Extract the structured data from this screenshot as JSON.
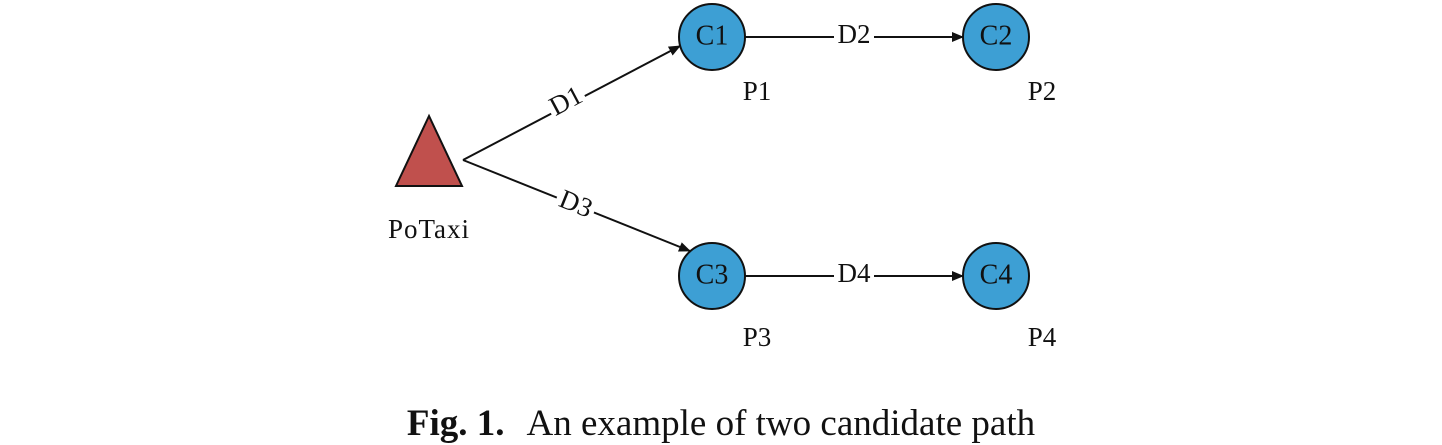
{
  "diagram": {
    "colors": {
      "node_fill": "#3d9fd4",
      "taxi_fill": "#c0504d",
      "stroke": "#111111"
    },
    "taxi": {
      "label": "PoTaxi",
      "icon": "triangle-icon"
    },
    "nodes": [
      {
        "id": "C1",
        "label": "C1",
        "place": "P1"
      },
      {
        "id": "C2",
        "label": "C2",
        "place": "P2"
      },
      {
        "id": "C3",
        "label": "C3",
        "place": "P3"
      },
      {
        "id": "C4",
        "label": "C4",
        "place": "P4"
      }
    ],
    "edges": [
      {
        "from": "PoTaxi",
        "to": "C1",
        "label": "D1"
      },
      {
        "from": "C1",
        "to": "C2",
        "label": "D2"
      },
      {
        "from": "PoTaxi",
        "to": "C3",
        "label": "D3"
      },
      {
        "from": "C3",
        "to": "C4",
        "label": "D4"
      }
    ]
  },
  "caption": {
    "fig_number": "Fig. 1.",
    "text": "An example of two candidate path"
  }
}
